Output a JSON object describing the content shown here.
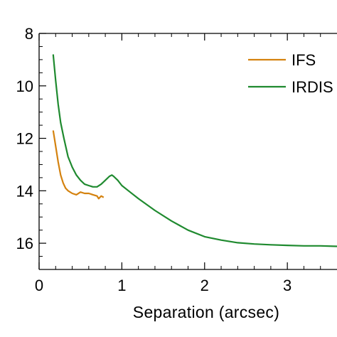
{
  "chart_data": {
    "type": "line",
    "xlabel": "Separation (arcsec)",
    "ylabel": "",
    "xlim": [
      0,
      3.6
    ],
    "ylim": [
      17,
      8
    ],
    "y_inverted": true,
    "x_ticks": [
      0,
      1,
      2,
      3
    ],
    "x_tick_labels": [
      "0",
      "1",
      "2",
      "3"
    ],
    "y_ticks": [
      8,
      10,
      12,
      14,
      16
    ],
    "y_tick_labels": [
      "8",
      "10",
      "12",
      "14",
      "16"
    ],
    "grid": false,
    "legend_position": "top-right",
    "colors": {
      "IFS": "#d4820f",
      "IRDIS": "#1f8a2f",
      "axes": "#000000"
    },
    "series": [
      {
        "name": "IFS",
        "color": "#d4820f",
        "x": [
          0.17,
          0.2,
          0.23,
          0.26,
          0.29,
          0.32,
          0.35,
          0.4,
          0.45,
          0.5,
          0.55,
          0.6,
          0.65,
          0.7,
          0.72,
          0.75,
          0.78
        ],
        "y": [
          11.7,
          12.3,
          12.9,
          13.4,
          13.7,
          13.9,
          14.0,
          14.1,
          14.15,
          14.05,
          14.1,
          14.1,
          14.15,
          14.2,
          14.3,
          14.2,
          14.25
        ]
      },
      {
        "name": "IRDIS",
        "color": "#1f8a2f",
        "x": [
          0.17,
          0.2,
          0.23,
          0.26,
          0.3,
          0.35,
          0.4,
          0.45,
          0.5,
          0.55,
          0.6,
          0.65,
          0.7,
          0.75,
          0.8,
          0.85,
          0.88,
          0.9,
          0.95,
          1.0,
          1.1,
          1.2,
          1.4,
          1.6,
          1.8,
          2.0,
          2.2,
          2.4,
          2.6,
          2.8,
          3.0,
          3.2,
          3.4,
          3.6
        ],
        "y": [
          8.8,
          9.8,
          10.7,
          11.4,
          12.0,
          12.7,
          13.1,
          13.4,
          13.6,
          13.75,
          13.8,
          13.85,
          13.85,
          13.75,
          13.6,
          13.45,
          13.4,
          13.45,
          13.6,
          13.8,
          14.05,
          14.3,
          14.75,
          15.15,
          15.5,
          15.75,
          15.88,
          15.98,
          16.03,
          16.06,
          16.08,
          16.1,
          16.1,
          16.12
        ]
      }
    ]
  }
}
